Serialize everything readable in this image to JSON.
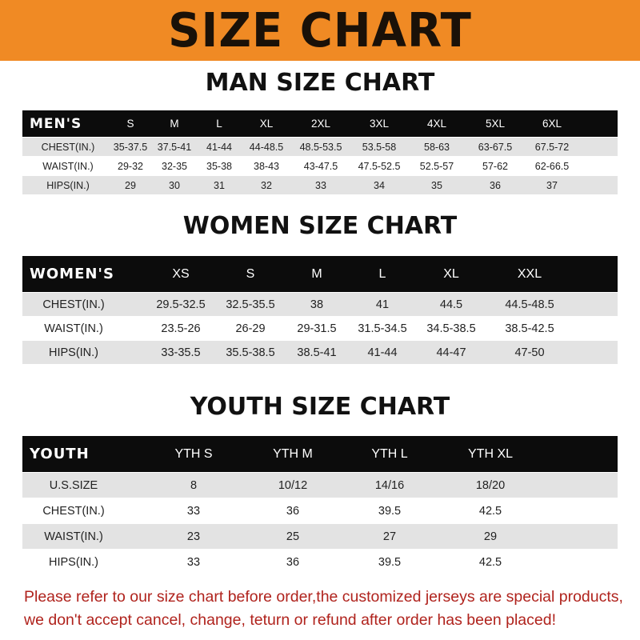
{
  "banner": {
    "title": "SIZE CHART",
    "color": "#f08a24"
  },
  "men": {
    "title": "MAN SIZE CHART",
    "header_label": "MEN'S",
    "sizes": [
      "S",
      "M",
      "L",
      "XL",
      "2XL",
      "3XL",
      "4XL",
      "5XL",
      "6XL"
    ],
    "rows": [
      {
        "label": "CHEST(IN.)",
        "values": [
          "35-37.5",
          "37.5-41",
          "41-44",
          "44-48.5",
          "48.5-53.5",
          "53.5-58",
          "58-63",
          "63-67.5",
          "67.5-72"
        ]
      },
      {
        "label": "WAIST(IN.)",
        "values": [
          "29-32",
          "32-35",
          "35-38",
          "38-43",
          "43-47.5",
          "47.5-52.5",
          "52.5-57",
          "57-62",
          "62-66.5"
        ]
      },
      {
        "label": "HIPS(IN.)",
        "values": [
          "29",
          "30",
          "31",
          "32",
          "33",
          "34",
          "35",
          "36",
          "37"
        ]
      }
    ]
  },
  "women": {
    "title": "WOMEN SIZE CHART",
    "header_label": "WOMEN'S",
    "sizes": [
      "XS",
      "S",
      "M",
      "L",
      "XL",
      "XXL"
    ],
    "rows": [
      {
        "label": "CHEST(IN.)",
        "values": [
          "29.5-32.5",
          "32.5-35.5",
          "38",
          "41",
          "44.5",
          "44.5-48.5"
        ]
      },
      {
        "label": "WAIST(IN.)",
        "values": [
          "23.5-26",
          "26-29",
          "29-31.5",
          "31.5-34.5",
          "34.5-38.5",
          "38.5-42.5"
        ]
      },
      {
        "label": "HIPS(IN.)",
        "values": [
          "33-35.5",
          "35.5-38.5",
          "38.5-41",
          "41-44",
          "44-47",
          "47-50"
        ]
      }
    ]
  },
  "youth": {
    "title": "YOUTH SIZE CHART",
    "header_label": "YOUTH",
    "sizes": [
      "YTH S",
      "YTH M",
      "YTH L",
      "YTH XL"
    ],
    "rows": [
      {
        "label": "U.S.SIZE",
        "values": [
          "8",
          "10/12",
          "14/16",
          "18/20"
        ]
      },
      {
        "label": "CHEST(IN.)",
        "values": [
          "33",
          "36",
          "39.5",
          "42.5"
        ]
      },
      {
        "label": "WAIST(IN.)",
        "values": [
          "23",
          "25",
          "27",
          "29"
        ]
      },
      {
        "label": "HIPS(IN.)",
        "values": [
          "33",
          "36",
          "39.5",
          "42.5"
        ]
      }
    ]
  },
  "notice": {
    "line1": "Please refer to our size chart before order,the customized jerseys are special products,",
    "line2": "we don't accept cancel, change, teturn or refund after order has been placed!",
    "color": "#b0231d"
  }
}
